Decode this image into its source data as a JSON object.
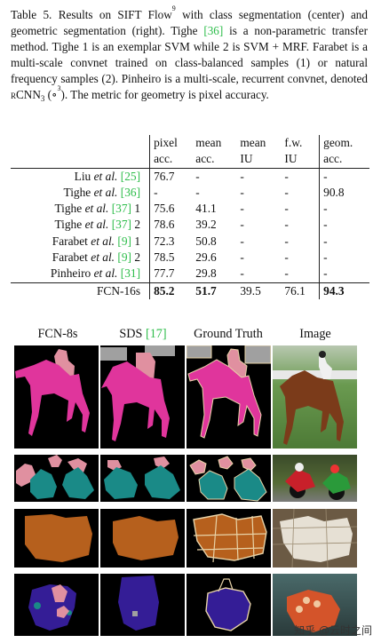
{
  "caption": {
    "t1": "Table 5.   Results on SIFT Flow",
    "sup1": "9",
    "t2": " with class segmentation (center) and geometric segmentation (right).  Tighe ",
    "c1": "[36]",
    "t3": " is a non-parametric transfer method.  Tighe 1 is an exemplar SVM while 2 is SVM + MRF. Farabet is a multi-scale convnet trained on class-balanced samples (1) or natural frequency samples (2). Pinheiro is a multi-scale, recurrent convnet, denoted ",
    "sc": "rCNN",
    "sub": "3",
    "t4": " (∘",
    "sup2": "3",
    "t5": "). The metric for geometry is pixel accuracy."
  },
  "table": {
    "headers": [
      {
        "l1": "pixel",
        "l2": "acc."
      },
      {
        "l1": "mean",
        "l2": "acc."
      },
      {
        "l1": "mean",
        "l2": "IU"
      },
      {
        "l1": "f.w.",
        "l2": "IU"
      },
      {
        "l1": "geom.",
        "l2": "acc."
      }
    ],
    "rows": [
      {
        "name": "Liu ",
        "etal": "et al.",
        "cite": "[25]",
        "suffix": "",
        "pa": "76.7",
        "ma": "-",
        "miu": "-",
        "fwiu": "-",
        "geom": "-"
      },
      {
        "name": "Tighe ",
        "etal": "et al.",
        "cite": "[36]",
        "suffix": "",
        "pa": "-",
        "ma": "-",
        "miu": "-",
        "fwiu": "-",
        "geom": "90.8"
      },
      {
        "name": "Tighe ",
        "etal": "et al.",
        "cite": "[37]",
        "suffix": " 1",
        "pa": "75.6",
        "ma": "41.1",
        "miu": "-",
        "fwiu": "-",
        "geom": "-"
      },
      {
        "name": "Tighe ",
        "etal": "et al.",
        "cite": "[37]",
        "suffix": " 2",
        "pa": "78.6",
        "ma": "39.2",
        "miu": "-",
        "fwiu": "-",
        "geom": "-"
      },
      {
        "name": "Farabet ",
        "etal": "et al.",
        "cite": "[9]",
        "suffix": " 1",
        "pa": "72.3",
        "ma": "50.8",
        "miu": "-",
        "fwiu": "-",
        "geom": "-"
      },
      {
        "name": "Farabet ",
        "etal": "et al.",
        "cite": "[9]",
        "suffix": " 2",
        "pa": "78.5",
        "ma": "29.6",
        "miu": "-",
        "fwiu": "-",
        "geom": "-"
      },
      {
        "name": "Pinheiro ",
        "etal": "et al.",
        "cite": "[31]",
        "suffix": "",
        "pa": "77.7",
        "ma": "29.8",
        "miu": "-",
        "fwiu": "-",
        "geom": "-"
      }
    ],
    "final": {
      "name": "FCN-16s",
      "pa": "85.2",
      "ma": "51.7",
      "miu": "39.5",
      "fwiu": "76.1",
      "geom": "94.3"
    }
  },
  "figure": {
    "col1": "FCN-8s",
    "col2a": "SDS ",
    "col2cite": "[17]",
    "col3": "Ground Truth",
    "col4": "Image",
    "colors": {
      "person": "#e090a0",
      "horse": "#e0359c",
      "motorbike": "#1a8a87",
      "sheep": "#b6601d",
      "boat": "#341d96",
      "gray": "#a0a0a0",
      "outline": "#e8d3a8"
    }
  },
  "watermark": "知乎 @云时之间"
}
